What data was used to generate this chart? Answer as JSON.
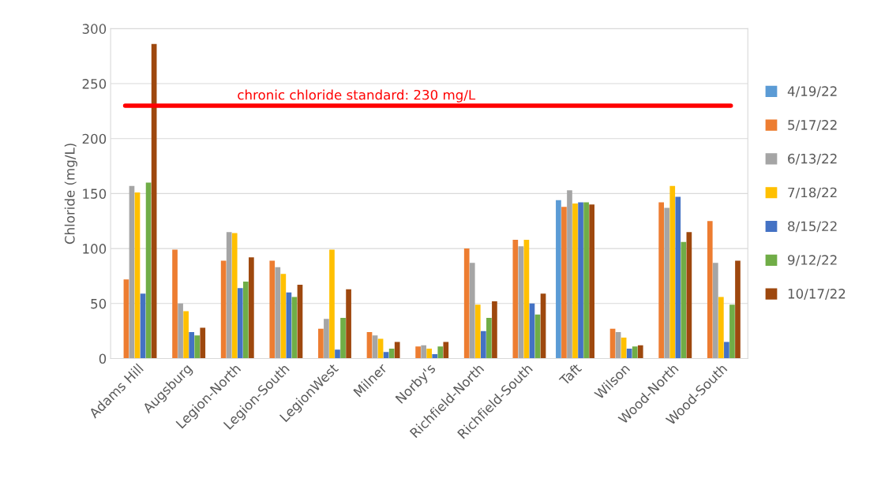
{
  "chart_data": {
    "type": "bar",
    "ylabel": "Chloride (mg/L)",
    "categories": [
      "Adams Hill",
      "Augsburg",
      "Legion-North",
      "Legion-South",
      "LegionWest",
      "Milner",
      "Norby's",
      "Richfield-North",
      "Richfield-South",
      "Taft",
      "Wilson",
      "Wood-North",
      "Wood-South"
    ],
    "series": [
      {
        "name": "4/19/22",
        "color": "#5b9bd5",
        "values": [
          null,
          null,
          null,
          null,
          null,
          null,
          null,
          null,
          null,
          144,
          null,
          null,
          null
        ]
      },
      {
        "name": "5/17/22",
        "color": "#ed7d31",
        "values": [
          72,
          99,
          89,
          89,
          27,
          24,
          11,
          100,
          108,
          138,
          27,
          142,
          125
        ]
      },
      {
        "name": "6/13/22",
        "color": "#a5a5a5",
        "values": [
          157,
          50,
          115,
          83,
          36,
          21,
          12,
          87,
          102,
          153,
          24,
          137,
          87
        ]
      },
      {
        "name": "7/18/22",
        "color": "#ffc000",
        "values": [
          151,
          43,
          114,
          77,
          99,
          18,
          9,
          49,
          108,
          141,
          19,
          157,
          56
        ]
      },
      {
        "name": "8/15/22",
        "color": "#4472c4",
        "values": [
          59,
          24,
          64,
          60,
          8,
          6,
          4,
          25,
          50,
          142,
          9,
          147,
          15
        ]
      },
      {
        "name": "9/12/22",
        "color": "#70ad47",
        "values": [
          160,
          21,
          70,
          56,
          37,
          9,
          11,
          37,
          40,
          142,
          11,
          106,
          49
        ]
      },
      {
        "name": "10/17/22",
        "color": "#9e480e",
        "values": [
          286,
          28,
          92,
          67,
          63,
          15,
          15,
          52,
          59,
          140,
          12,
          115,
          89
        ]
      }
    ],
    "ylim": [
      0,
      300
    ],
    "yticks": [
      0,
      50,
      100,
      150,
      200,
      250,
      300
    ],
    "grid": "y",
    "legend": "right",
    "ref_lines": [
      {
        "axis": "y",
        "value": 230,
        "label": "chronic chloride standard: 230 mg/L",
        "color": "#ff0000"
      }
    ]
  }
}
